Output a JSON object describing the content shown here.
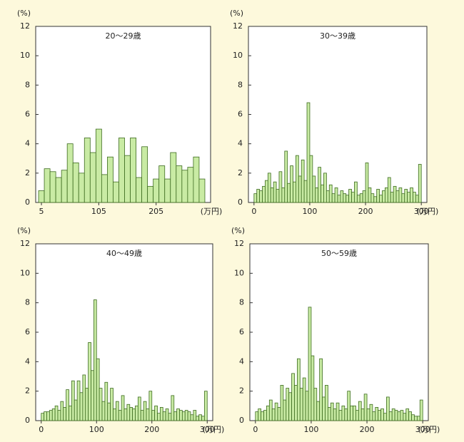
{
  "chart_data": [
    {
      "type": "histogram",
      "title": "20～29歳",
      "ylabel": "(%)",
      "xlabel": "(万円)",
      "bins": [
        0,
        10,
        20,
        30,
        40,
        50,
        60,
        70,
        80,
        90,
        100,
        110,
        120,
        130,
        140,
        150,
        160,
        170,
        180,
        190,
        200,
        210,
        220,
        230,
        240,
        250,
        260,
        270,
        280,
        290
      ],
      "values": [
        0.8,
        2.3,
        2.1,
        1.7,
        2.2,
        4.0,
        2.7,
        2.0,
        4.4,
        3.4,
        5.0,
        1.9,
        3.1,
        1.4,
        4.4,
        3.2,
        4.4,
        1.7,
        3.8,
        1.1,
        1.6,
        2.5,
        1.6,
        3.4,
        2.5,
        2.2,
        2.4,
        3.1,
        1.6
      ],
      "xlim": [
        -5,
        300
      ],
      "xticks": [
        5,
        105,
        205
      ],
      "ylim": [
        0,
        12
      ],
      "yticks": [
        0,
        2,
        4,
        6,
        8,
        10,
        12
      ],
      "color": "#c9eba4"
    },
    {
      "type": "histogram",
      "title": "30～39歳",
      "ylabel": "(%)",
      "xlabel": "(万円)",
      "bins": [
        0,
        5,
        10,
        15,
        20,
        25,
        30,
        35,
        40,
        45,
        50,
        55,
        60,
        65,
        70,
        75,
        80,
        85,
        90,
        95,
        100,
        105,
        110,
        115,
        120,
        125,
        130,
        135,
        140,
        145,
        150,
        155,
        160,
        165,
        170,
        175,
        180,
        185,
        190,
        195,
        200,
        205,
        210,
        215,
        220,
        225,
        230,
        235,
        240,
        245,
        250,
        255,
        260,
        265,
        270,
        275,
        280,
        285,
        290,
        295,
        300
      ],
      "values": [
        0.6,
        0.9,
        0.8,
        1.1,
        1.5,
        2.0,
        1.0,
        1.4,
        0.9,
        2.1,
        1.0,
        3.5,
        1.3,
        2.5,
        1.4,
        3.2,
        1.8,
        2.9,
        1.5,
        6.8,
        3.2,
        1.8,
        1.0,
        2.4,
        1.2,
        2.0,
        0.8,
        1.2,
        0.6,
        1.0,
        0.5,
        0.8,
        0.6,
        0.5,
        0.9,
        0.7,
        1.4,
        0.5,
        0.6,
        0.8,
        2.7,
        1.0,
        0.6,
        0.4,
        0.9,
        0.5,
        0.8,
        1.0,
        1.7,
        0.7,
        1.1,
        0.8,
        1.0,
        0.6,
        0.9,
        0.7,
        1.0,
        0.7,
        0.5,
        2.6
      ],
      "xlim": [
        -10,
        310
      ],
      "xticks": [
        0,
        100,
        200,
        300
      ],
      "ylim": [
        0,
        12
      ],
      "yticks": [
        0,
        2,
        4,
        6,
        8,
        10,
        12
      ],
      "color": "#c9eba4"
    },
    {
      "type": "histogram",
      "title": "40～49歳",
      "ylabel": "(%)",
      "xlabel": "(万円)",
      "bins": [
        0,
        5,
        10,
        15,
        20,
        25,
        30,
        35,
        40,
        45,
        50,
        55,
        60,
        65,
        70,
        75,
        80,
        85,
        90,
        95,
        100,
        105,
        110,
        115,
        120,
        125,
        130,
        135,
        140,
        145,
        150,
        155,
        160,
        165,
        170,
        175,
        180,
        185,
        190,
        195,
        200,
        205,
        210,
        215,
        220,
        225,
        230,
        235,
        240,
        245,
        250,
        255,
        260,
        265,
        270,
        275,
        280,
        285,
        290,
        295,
        300
      ],
      "values": [
        0.5,
        0.6,
        0.6,
        0.7,
        0.8,
        1.0,
        0.7,
        1.3,
        0.9,
        2.1,
        1.0,
        2.7,
        1.4,
        2.7,
        1.9,
        3.1,
        2.2,
        5.3,
        3.4,
        8.2,
        4.2,
        2.2,
        1.3,
        2.6,
        1.2,
        2.2,
        0.8,
        1.3,
        0.7,
        1.7,
        0.8,
        1.1,
        0.9,
        0.8,
        1.0,
        1.6,
        0.7,
        1.3,
        0.8,
        2.0,
        0.7,
        1.0,
        0.5,
        0.9,
        0.6,
        0.8,
        0.5,
        1.7,
        0.6,
        0.8,
        0.7,
        0.6,
        0.7,
        0.6,
        0.4,
        0.7,
        0.3,
        0.4,
        0.3,
        2.0
      ],
      "xlim": [
        -10,
        310
      ],
      "xticks": [
        0,
        100,
        200,
        300
      ],
      "ylim": [
        0,
        12
      ],
      "yticks": [
        0,
        2,
        4,
        6,
        8,
        10,
        12
      ],
      "color": "#c9eba4"
    },
    {
      "type": "histogram",
      "title": "50～59歳",
      "ylabel": "(%)",
      "xlabel": "(万円)",
      "bins": [
        0,
        5,
        10,
        15,
        20,
        25,
        30,
        35,
        40,
        45,
        50,
        55,
        60,
        65,
        70,
        75,
        80,
        85,
        90,
        95,
        100,
        105,
        110,
        115,
        120,
        125,
        130,
        135,
        140,
        145,
        150,
        155,
        160,
        165,
        170,
        175,
        180,
        185,
        190,
        195,
        200,
        205,
        210,
        215,
        220,
        225,
        230,
        235,
        240,
        245,
        250,
        255,
        260,
        265,
        270,
        275,
        280,
        285,
        290,
        295,
        300
      ],
      "values": [
        0.6,
        0.8,
        0.6,
        0.7,
        1.0,
        1.4,
        0.8,
        1.2,
        0.9,
        2.4,
        1.4,
        2.2,
        1.9,
        3.2,
        2.4,
        4.2,
        2.2,
        2.9,
        2.0,
        7.7,
        4.4,
        2.2,
        1.3,
        4.2,
        1.6,
        2.4,
        0.9,
        1.2,
        0.8,
        1.2,
        0.7,
        1.0,
        0.8,
        2.0,
        1.0,
        1.0,
        0.7,
        1.3,
        0.8,
        1.8,
        0.8,
        1.1,
        0.6,
        0.9,
        0.7,
        0.8,
        0.5,
        1.6,
        0.6,
        0.8,
        0.7,
        0.6,
        0.7,
        0.5,
        0.8,
        0.6,
        0.4,
        0.3,
        0.3,
        1.4
      ],
      "xlim": [
        -10,
        310
      ],
      "xticks": [
        0,
        100,
        200,
        300
      ],
      "ylim": [
        0,
        12
      ],
      "yticks": [
        0,
        2,
        4,
        6,
        8,
        10,
        12
      ],
      "color": "#c9eba4"
    }
  ]
}
